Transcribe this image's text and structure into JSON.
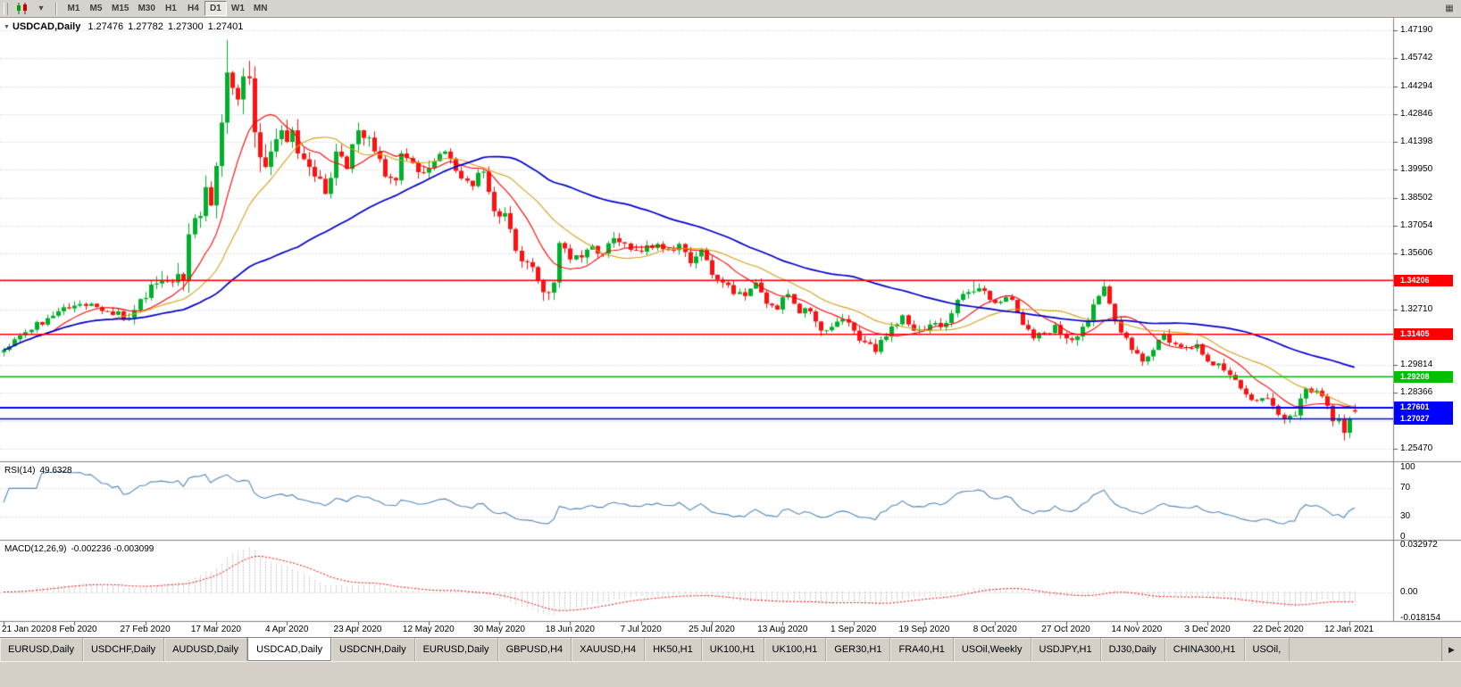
{
  "icons": {
    "title_arrow": "▼",
    "caret_down": "▾",
    "more": "▦",
    "scroll_right": "▶"
  },
  "toolbar": {
    "timeframes": [
      "M1",
      "M5",
      "M15",
      "M30",
      "H1",
      "H4",
      "D1",
      "W1",
      "MN"
    ],
    "active_timeframe": "D1"
  },
  "chart": {
    "symbol": "USDCAD,Daily",
    "ohlc": {
      "open": "1.27476",
      "high": "1.27782",
      "low": "1.27300",
      "close": "1.27401"
    },
    "hlines": [
      {
        "price": 1.34206,
        "label": "1.34206",
        "color": "#FF0000",
        "width": 1.5
      },
      {
        "price": 1.31405,
        "label": "1.31405",
        "color": "#FF0000",
        "width": 1.5
      },
      {
        "price": 1.29208,
        "label": "1.29208",
        "color": "#00C000",
        "width": 1.6
      },
      {
        "price": 1.27601,
        "label": "1.27601",
        "color": "#0000FF",
        "width": 2
      },
      {
        "price": 1.27027,
        "label": "1.27027",
        "color": "#0000FF",
        "width": 1.5
      }
    ]
  },
  "chart_data": {
    "type": "candlestick",
    "symbol": "USDCAD",
    "timeframe": "Daily",
    "num_candles": 249,
    "x_labels": [
      "21 Jan 2020",
      "8 Feb 2020",
      "27 Feb 2020",
      "17 Mar 2020",
      "4 Apr 2020",
      "23 Apr 2020",
      "12 May 2020",
      "30 May 2020",
      "18 Jun 2020",
      "7 Jul 2020",
      "25 Jul 2020",
      "13 Aug 2020",
      "1 Sep 2020",
      "19 Sep 2020",
      "8 Oct 2020",
      "27 Oct 2020",
      "14 Nov 2020",
      "3 Dec 2020",
      "22 Dec 2020",
      "12 Jan 2021"
    ],
    "label_step": 13,
    "y_axis": {
      "ticks": [
        "1.47190",
        "1.45742",
        "1.44294",
        "1.42846",
        "1.41398",
        "1.39950",
        "1.38502",
        "1.37054",
        "1.35606",
        "1.34158",
        "1.32710",
        "1.31262",
        "1.29814",
        "1.28366",
        "1.26918",
        "1.25470"
      ],
      "plot_max": 1.47838,
      "plot_min": 1.24822
    },
    "anchors": [
      [
        0,
        1.306
      ],
      [
        3,
        1.3135
      ],
      [
        8,
        1.3225
      ],
      [
        13,
        1.329
      ],
      [
        16,
        1.33
      ],
      [
        19,
        1.326
      ],
      [
        23,
        1.3225
      ],
      [
        26,
        1.333
      ],
      [
        28,
        1.3405
      ],
      [
        30,
        1.3415
      ],
      [
        33,
        1.342
      ],
      [
        34,
        1.366
      ],
      [
        36,
        1.3755
      ],
      [
        37,
        1.3905
      ],
      [
        38,
        1.381
      ],
      [
        39,
        1.4015
      ],
      [
        40,
        1.424
      ],
      [
        41,
        1.45
      ],
      [
        42,
        1.442
      ],
      [
        43,
        1.436
      ],
      [
        44,
        1.448
      ],
      [
        45,
        1.447
      ],
      [
        46,
        1.419
      ],
      [
        47,
        1.406
      ],
      [
        48,
        1.401
      ],
      [
        49,
        1.409
      ],
      [
        51,
        1.42
      ],
      [
        52,
        1.414
      ],
      [
        53,
        1.42
      ],
      [
        54,
        1.408
      ],
      [
        56,
        1.401
      ],
      [
        57,
        1.396
      ],
      [
        59,
        1.387
      ],
      [
        61,
        1.409
      ],
      [
        63,
        1.4
      ],
      [
        65,
        1.42
      ],
      [
        66,
        1.416
      ],
      [
        68,
        1.409
      ],
      [
        70,
        1.396
      ],
      [
        72,
        1.394
      ],
      [
        73,
        1.408
      ],
      [
        75,
        1.403
      ],
      [
        77,
        1.398
      ],
      [
        79,
        1.404
      ],
      [
        81,
        1.409
      ],
      [
        84,
        1.395
      ],
      [
        86,
        1.391
      ],
      [
        88,
        1.3985
      ],
      [
        90,
        1.378
      ],
      [
        92,
        1.377
      ],
      [
        94,
        1.3575
      ],
      [
        95,
        1.352
      ],
      [
        97,
        1.349
      ],
      [
        98,
        1.342
      ],
      [
        99,
        1.336
      ],
      [
        101,
        1.341
      ],
      [
        102,
        1.3615
      ],
      [
        104,
        1.353
      ],
      [
        106,
        1.354
      ],
      [
        108,
        1.36
      ],
      [
        110,
        1.356
      ],
      [
        112,
        1.364
      ],
      [
        115,
        1.358
      ],
      [
        117,
        1.357
      ],
      [
        120,
        1.361
      ],
      [
        122,
        1.358
      ],
      [
        124,
        1.361
      ],
      [
        126,
        1.351
      ],
      [
        128,
        1.358
      ],
      [
        130,
        1.345
      ],
      [
        132,
        1.341
      ],
      [
        134,
        1.335
      ],
      [
        136,
        1.334
      ],
      [
        138,
        1.341
      ],
      [
        140,
        1.33
      ],
      [
        142,
        1.327
      ],
      [
        144,
        1.335
      ],
      [
        146,
        1.325
      ],
      [
        148,
        1.326
      ],
      [
        150,
        1.316
      ],
      [
        152,
        1.318
      ],
      [
        154,
        1.322
      ],
      [
        156,
        1.316
      ],
      [
        158,
        1.31
      ],
      [
        160,
        1.305
      ],
      [
        162,
        1.313
      ],
      [
        165,
        1.324
      ],
      [
        167,
        1.316
      ],
      [
        169,
        1.316
      ],
      [
        171,
        1.32
      ],
      [
        173,
        1.32
      ],
      [
        175,
        1.332
      ],
      [
        177,
        1.336
      ],
      [
        179,
        1.338
      ],
      [
        181,
        1.332
      ],
      [
        183,
        1.331
      ],
      [
        185,
        1.332
      ],
      [
        187,
        1.319
      ],
      [
        189,
        1.312
      ],
      [
        191,
        1.314
      ],
      [
        193,
        1.319
      ],
      [
        195,
        1.312
      ],
      [
        197,
        1.313
      ],
      [
        199,
        1.321
      ],
      [
        201,
        1.334
      ],
      [
        202,
        1.339
      ],
      [
        203,
        1.33
      ],
      [
        205,
        1.315
      ],
      [
        207,
        1.306
      ],
      [
        209,
        1.3
      ],
      [
        211,
        1.306
      ],
      [
        213,
        1.314
      ],
      [
        215,
        1.309
      ],
      [
        217,
        1.307
      ],
      [
        219,
        1.309
      ],
      [
        221,
        1.3
      ],
      [
        223,
        1.299
      ],
      [
        225,
        1.293
      ],
      [
        227,
        1.286
      ],
      [
        229,
        1.28
      ],
      [
        231,
        1.281
      ],
      [
        233,
        1.277
      ],
      [
        235,
        1.27
      ],
      [
        237,
        1.272
      ],
      [
        239,
        1.286
      ],
      [
        240,
        1.284
      ],
      [
        242,
        1.282
      ],
      [
        243,
        1.277
      ],
      [
        244,
        1.269
      ],
      [
        245,
        1.27
      ],
      [
        246,
        1.263
      ],
      [
        247,
        1.27
      ],
      [
        248,
        1.274
      ]
    ],
    "vol_anchors": [
      [
        0,
        0.0045
      ],
      [
        20,
        0.005
      ],
      [
        28,
        0.009
      ],
      [
        33,
        0.016
      ],
      [
        40,
        0.02
      ],
      [
        48,
        0.016
      ],
      [
        55,
        0.011
      ],
      [
        70,
        0.009
      ],
      [
        85,
        0.008
      ],
      [
        95,
        0.009
      ],
      [
        105,
        0.007
      ],
      [
        120,
        0.006
      ],
      [
        140,
        0.006
      ],
      [
        160,
        0.006
      ],
      [
        175,
        0.0055
      ],
      [
        195,
        0.006
      ],
      [
        205,
        0.0065
      ],
      [
        220,
        0.005
      ],
      [
        235,
        0.0055
      ],
      [
        248,
        0.006
      ]
    ],
    "spikes": [
      {
        "i": 41,
        "h": 1.4669
      },
      {
        "i": 99,
        "l": 1.3315
      },
      {
        "i": 178,
        "h": 1.3418
      },
      {
        "i": 202,
        "h": 1.3425
      },
      {
        "i": 246,
        "l": 1.259
      }
    ],
    "last_candle": {
      "o": 1.27476,
      "h": 1.27782,
      "l": 1.273,
      "c": 1.27401
    },
    "moving_averages": [
      {
        "period": 10,
        "color": "#FF0000",
        "width": 1.1
      },
      {
        "period": 21,
        "color": "#D4A017",
        "width": 1.1
      },
      {
        "period": 55,
        "color": "#0000CD",
        "width": 1.7
      }
    ],
    "indicators": {
      "rsi": {
        "label": "RSI(14)",
        "value": "49.6328",
        "period": 14,
        "levels": [
          70,
          30
        ],
        "ticks": [
          "100",
          "70",
          "30",
          "0"
        ],
        "color": "#5588BB"
      },
      "macd": {
        "label": "MACD(12,26,9)",
        "values": "-0.002236 -0.003099",
        "fast": 12,
        "slow": 26,
        "signal": 9,
        "ticks": [
          "0.032972",
          "0.00",
          "-0.018154"
        ],
        "axis_max": 0.034,
        "axis_min": -0.019,
        "hist_color": "#9A9A9A",
        "signal_color": "#FF0000"
      }
    },
    "colors": {
      "up": "#00B02B",
      "down": "#FF1111",
      "grid": "#C8C8C8",
      "separator": "#808080"
    }
  },
  "tabs": {
    "items": [
      {
        "label": "EURUSD,Daily",
        "active": false
      },
      {
        "label": "USDCHF,Daily",
        "active": false
      },
      {
        "label": "AUDUSD,Daily",
        "active": false
      },
      {
        "label": "USDCAD,Daily",
        "active": true
      },
      {
        "label": "USDCNH,Daily",
        "active": false
      },
      {
        "label": "EURUSD,Daily",
        "active": false
      },
      {
        "label": "GBPUSD,H4",
        "active": false
      },
      {
        "label": "XAUUSD,H4",
        "active": false
      },
      {
        "label": "HK50,H1",
        "active": false
      },
      {
        "label": "UK100,H1",
        "active": false
      },
      {
        "label": "UK100,H1",
        "active": false
      },
      {
        "label": "GER30,H1",
        "active": false
      },
      {
        "label": "FRA40,H1",
        "active": false
      },
      {
        "label": "USOil,Weekly",
        "active": false
      },
      {
        "label": "USDJPY,H1",
        "active": false
      },
      {
        "label": "DJ30,Daily",
        "active": false
      },
      {
        "label": "CHINA300,H1",
        "active": false
      },
      {
        "label": "USOil,",
        "active": false
      }
    ]
  }
}
